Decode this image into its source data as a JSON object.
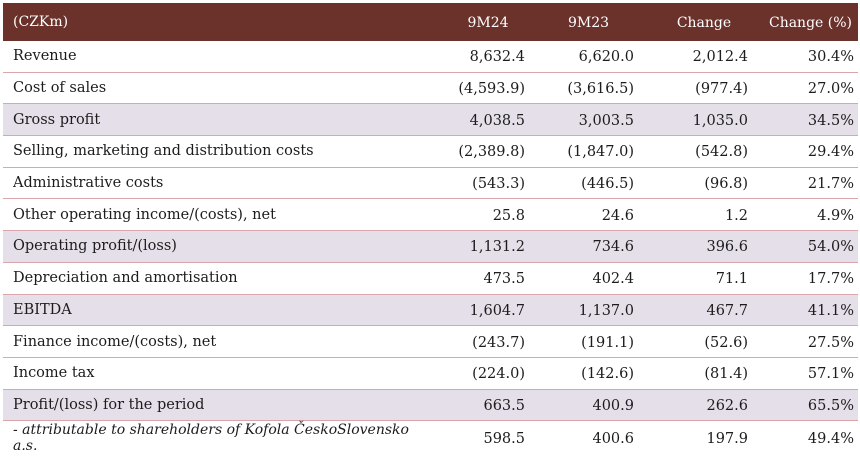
{
  "columns": [
    "(CZKm)",
    "9M24",
    "9M23",
    "Change",
    "Change (%)"
  ],
  "rows": [
    {
      "label": "Revenue",
      "v1": "8,632.4",
      "v2": "6,620.0",
      "v3": "2,012.4",
      "v4": "30.4%"
    },
    {
      "label": "Cost of sales",
      "v1": "(4,593.9)",
      "v2": "(3,616.5)",
      "v3": "(977.4)",
      "v4": "27.0%"
    },
    {
      "label": "Gross profit",
      "v1": "4,038.5",
      "v2": "3,003.5",
      "v3": "1,035.0",
      "v4": "34.5%"
    },
    {
      "label": "Selling, marketing and distribution costs",
      "v1": "(2,389.8)",
      "v2": "(1,847.0)",
      "v3": "(542.8)",
      "v4": "29.4%"
    },
    {
      "label": "Administrative costs",
      "v1": "(543.3)",
      "v2": "(446.5)",
      "v3": "(96.8)",
      "v4": "21.7%"
    },
    {
      "label": "Other operating income/(costs), net",
      "v1": "25.8",
      "v2": "24.6",
      "v3": "1.2",
      "v4": "4.9%"
    },
    {
      "label": "Operating profit/(loss)",
      "v1": "1,131.2",
      "v2": "734.6",
      "v3": "396.6",
      "v4": "54.0%"
    },
    {
      "label": "Depreciation and amortisation",
      "v1": "473.5",
      "v2": "402.4",
      "v3": "71.1",
      "v4": "17.7%"
    },
    {
      "label": "EBITDA",
      "v1": "1,604.7",
      "v2": "1,137.0",
      "v3": "467.7",
      "v4": "41.1%"
    },
    {
      "label": "Finance income/(costs), net",
      "v1": "(243.7)",
      "v2": "(191.1)",
      "v3": "(52.6)",
      "v4": "27.5%"
    },
    {
      "label": "Income tax",
      "v1": "(224.0)",
      "v2": "(142.6)",
      "v3": "(81.4)",
      "v4": "57.1%"
    },
    {
      "label": "Profit/(loss) for the period",
      "v1": "663.5",
      "v2": "400.9",
      "v3": "262.6",
      "v4": "65.5%"
    },
    {
      "label": "- attributable to shareholders of Kofola ČeskoSlovensko a.s.",
      "v1": "598.5",
      "v2": "400.6",
      "v3": "197.9",
      "v4": "49.4%"
    }
  ],
  "colors": {
    "header_bg": "#6b312b",
    "shaded_row": "#e5dfe9",
    "row_divider": "#d9a6ad"
  }
}
